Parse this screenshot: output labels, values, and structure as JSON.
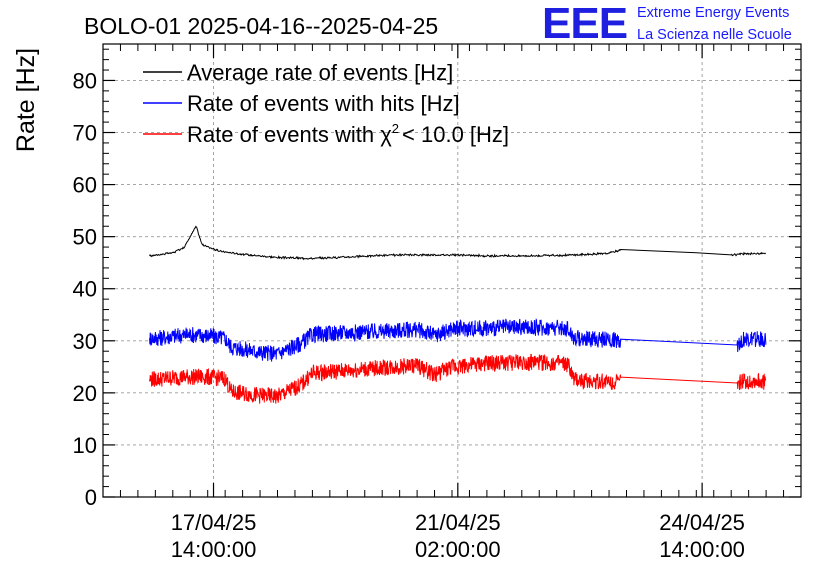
{
  "header": {
    "title": "BOLO-01 2025-04-16--2025-04-25",
    "logo_text": "EEE",
    "org_line1": "Extreme Energy Events",
    "org_line2": "La Scienza nelle Scuole",
    "logo_color": "#1f1fe0",
    "org_color": "#1a1aff"
  },
  "chart_data": {
    "type": "line",
    "ylabel": "Rate [Hz]",
    "ylim": [
      0,
      87
    ],
    "y_ticks": [
      0,
      10,
      20,
      30,
      40,
      50,
      60,
      70,
      80
    ],
    "y_tick_labels": [
      "0",
      "10",
      "20",
      "30",
      "40",
      "50",
      "60",
      "70",
      "80"
    ],
    "xlim": [
      "2025-04-16 00:00",
      "2025-04-26 00:00"
    ],
    "x_ticks": [
      {
        "x": "2025-04-17 14:00",
        "date": "17/04/25",
        "time": "14:00:00"
      },
      {
        "x": "2025-04-21 02:00",
        "date": "21/04/25",
        "time": "02:00:00"
      },
      {
        "x": "2025-04-24 14:00",
        "date": "24/04/25",
        "time": "14:00:00"
      }
    ],
    "grid": true,
    "legend_position": "top-left",
    "series": [
      {
        "name": "Average rate of events [Hz]",
        "legend_label": "Average rate of events [Hz]",
        "color": "#000000",
        "points": [
          [
            "2025-04-16 16:00",
            46.3
          ],
          [
            "2025-04-16 20:00",
            46.6
          ],
          [
            "2025-04-17 00:00",
            46.9
          ],
          [
            "2025-04-17 04:00",
            48.0
          ],
          [
            "2025-04-17 08:00",
            52.0
          ],
          [
            "2025-04-17 10:00",
            48.5
          ],
          [
            "2025-04-17 16:00",
            47.2
          ],
          [
            "2025-04-18 00:00",
            46.6
          ],
          [
            "2025-04-18 12:00",
            46.0
          ],
          [
            "2025-04-19 00:00",
            45.8
          ],
          [
            "2025-04-19 12:00",
            46.1
          ],
          [
            "2025-04-20 00:00",
            46.4
          ],
          [
            "2025-04-20 12:00",
            46.5
          ],
          [
            "2025-04-21 00:00",
            46.5
          ],
          [
            "2025-04-21 12:00",
            46.3
          ],
          [
            "2025-04-22 00:00",
            46.3
          ],
          [
            "2025-04-22 12:00",
            46.4
          ],
          [
            "2025-04-23 00:00",
            46.6
          ],
          [
            "2025-04-23 06:00",
            46.8
          ],
          [
            "2025-04-23 10:00",
            47.5
          ],
          [
            "2025-04-24 00:00",
            47.2
          ],
          [
            "2025-04-24 12:00",
            46.9
          ],
          [
            "2025-04-25 00:00",
            46.5
          ],
          [
            "2025-04-25 04:00",
            46.7
          ],
          [
            "2025-04-25 12:00",
            46.8
          ]
        ]
      },
      {
        "name": "Rate of events with hits [Hz]",
        "legend_label": "Rate of events with hits [Hz]",
        "color": "#0000ff",
        "points": [
          [
            "2025-04-16 16:00",
            30.5
          ],
          [
            "2025-04-16 20:00",
            30.6
          ],
          [
            "2025-04-17 00:00",
            30.9
          ],
          [
            "2025-04-17 06:00",
            31.2
          ],
          [
            "2025-04-17 12:00",
            31.0
          ],
          [
            "2025-04-17 18:00",
            30.5
          ],
          [
            "2025-04-17 20:00",
            28.8
          ],
          [
            "2025-04-18 06:00",
            27.8
          ],
          [
            "2025-04-18 12:00",
            27.5
          ],
          [
            "2025-04-18 20:00",
            29.5
          ],
          [
            "2025-04-19 00:00",
            31.2
          ],
          [
            "2025-04-19 12:00",
            31.6
          ],
          [
            "2025-04-20 00:00",
            31.8
          ],
          [
            "2025-04-20 12:00",
            32.2
          ],
          [
            "2025-04-20 18:00",
            31.0
          ],
          [
            "2025-04-21 00:00",
            32.3
          ],
          [
            "2025-04-21 12:00",
            32.4
          ],
          [
            "2025-04-22 00:00",
            32.6
          ],
          [
            "2025-04-22 12:00",
            32.5
          ],
          [
            "2025-04-22 16:00",
            32.3
          ],
          [
            "2025-04-22 18:00",
            30.5
          ],
          [
            "2025-04-23 06:00",
            30.2
          ],
          [
            "2025-04-23 10:00",
            30.1
          ],
          [
            "2025-04-25 02:00",
            29.2
          ],
          [
            "2025-04-25 04:00",
            30.2
          ],
          [
            "2025-04-25 12:00",
            30.3
          ]
        ]
      },
      {
        "name": "Rate of events with χ2 < 10.0 [Hz]",
        "legend_label": "Rate of events with",
        "legend_chi": "χ",
        "legend_sup": "2",
        "legend_tail": "< 10.0 [Hz]",
        "color": "#ff0000",
        "points": [
          [
            "2025-04-16 16:00",
            22.6
          ],
          [
            "2025-04-16 20:00",
            22.7
          ],
          [
            "2025-04-17 00:00",
            22.9
          ],
          [
            "2025-04-17 06:00",
            23.1
          ],
          [
            "2025-04-17 12:00",
            23.0
          ],
          [
            "2025-04-17 18:00",
            22.8
          ],
          [
            "2025-04-17 20:00",
            20.2
          ],
          [
            "2025-04-18 06:00",
            19.5
          ],
          [
            "2025-04-18 12:00",
            19.3
          ],
          [
            "2025-04-18 20:00",
            21.5
          ],
          [
            "2025-04-19 00:00",
            23.8
          ],
          [
            "2025-04-19 12:00",
            24.3
          ],
          [
            "2025-04-20 00:00",
            24.8
          ],
          [
            "2025-04-20 12:00",
            25.3
          ],
          [
            "2025-04-20 18:00",
            23.5
          ],
          [
            "2025-04-21 00:00",
            25.0
          ],
          [
            "2025-04-21 12:00",
            25.6
          ],
          [
            "2025-04-22 00:00",
            25.9
          ],
          [
            "2025-04-22 12:00",
            25.7
          ],
          [
            "2025-04-22 16:00",
            25.3
          ],
          [
            "2025-04-22 18:00",
            22.4
          ],
          [
            "2025-04-23 06:00",
            22.2
          ],
          [
            "2025-04-23 10:00",
            22.1
          ],
          [
            "2025-04-25 02:00",
            21.9
          ],
          [
            "2025-04-25 04:00",
            22.2
          ],
          [
            "2025-04-25 12:00",
            22.2
          ]
        ]
      }
    ]
  }
}
